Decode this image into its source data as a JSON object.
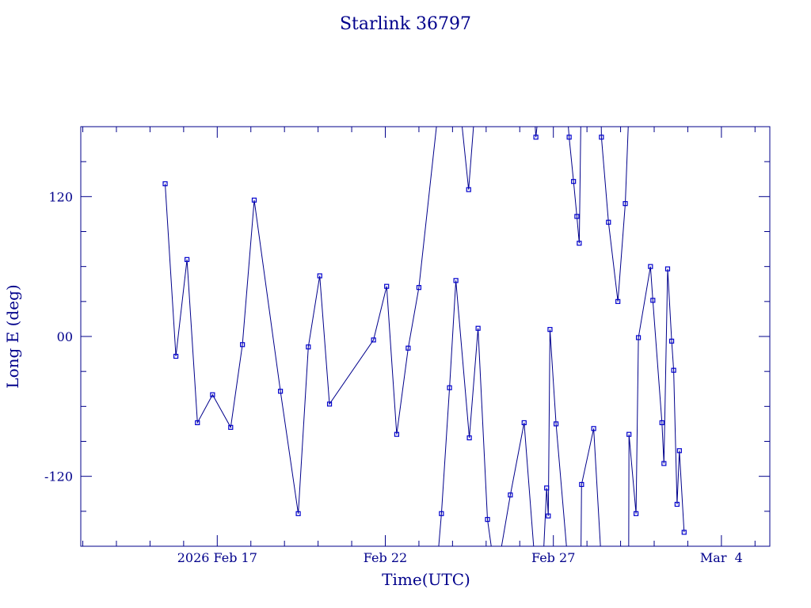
{
  "chart_data": {
    "type": "line",
    "title": "Starlink 36797",
    "xlabel": "Time(UTC)",
    "ylabel": "Long E (deg)",
    "x_tick_labels": [
      "2026 Feb 17",
      "Feb 22",
      "Feb 27",
      "Mar  4"
    ],
    "y_tick_labels": [
      "120",
      "00",
      "-120"
    ],
    "y_ticks": [
      120,
      0,
      -120
    ],
    "ylim": [
      -180,
      180
    ],
    "grid": false,
    "colors": {
      "axis": "#00008b",
      "line": "#00008b",
      "marker": "#0000cd"
    },
    "x_unit": "days from 2026 Feb 17 00:00 UTC",
    "xlim": [
      -4.06,
      16.44
    ],
    "segments": [
      [
        [
          -1.55,
          131
        ],
        [
          -1.23,
          -17
        ],
        [
          -0.9,
          66
        ],
        [
          -0.59,
          -74
        ],
        [
          -0.14,
          -50
        ],
        [
          0.4,
          -78
        ],
        [
          0.75,
          -7
        ],
        [
          1.1,
          117
        ],
        [
          1.88,
          -47
        ],
        [
          2.41,
          -152
        ],
        [
          2.71,
          -9
        ],
        [
          3.05,
          52
        ],
        [
          3.34,
          -58
        ],
        [
          4.65,
          -3
        ],
        [
          5.04,
          43
        ],
        [
          5.34,
          -84
        ],
        [
          5.68,
          -10
        ],
        [
          6.0,
          42
        ],
        [
          6.56,
          190
        ]
      ],
      [
        [
          6.56,
          -190
        ],
        [
          6.67,
          -152
        ],
        [
          6.91,
          -44
        ],
        [
          7.1,
          48
        ],
        [
          7.5,
          -87
        ],
        [
          7.76,
          7
        ],
        [
          8.04,
          -157
        ],
        [
          8.2,
          -190
        ]
      ],
      [
        [
          7.25,
          190
        ],
        [
          7.48,
          126
        ],
        [
          7.65,
          190
        ]
      ],
      [
        [
          8.4,
          -190
        ],
        [
          8.72,
          -136
        ],
        [
          9.13,
          -74
        ],
        [
          9.44,
          -190
        ]
      ],
      [
        [
          9.44,
          190
        ],
        [
          9.48,
          171
        ],
        [
          9.55,
          190
        ]
      ],
      [
        [
          9.7,
          -190
        ],
        [
          9.8,
          -130
        ],
        [
          9.85,
          -154
        ],
        [
          9.9,
          6
        ],
        [
          10.08,
          -75
        ],
        [
          10.42,
          -190
        ]
      ],
      [
        [
          10.42,
          190
        ],
        [
          10.47,
          171
        ],
        [
          10.6,
          133
        ],
        [
          10.7,
          103
        ],
        [
          10.77,
          80
        ],
        [
          10.82,
          190
        ]
      ],
      [
        [
          10.82,
          -190
        ],
        [
          10.84,
          -127
        ],
        [
          11.2,
          -79
        ],
        [
          11.42,
          -190
        ]
      ],
      [
        [
          11.42,
          190
        ],
        [
          11.43,
          171
        ],
        [
          11.64,
          98
        ],
        [
          11.92,
          30
        ],
        [
          12.14,
          114
        ],
        [
          12.24,
          190
        ]
      ],
      [
        [
          12.24,
          -190
        ],
        [
          12.25,
          -84
        ],
        [
          12.46,
          -152
        ],
        [
          12.53,
          -1
        ],
        [
          12.89,
          60
        ],
        [
          12.96,
          31
        ],
        [
          13.23,
          -74
        ],
        [
          13.29,
          -109
        ],
        [
          13.4,
          58
        ],
        [
          13.52,
          -4
        ],
        [
          13.58,
          -29
        ],
        [
          13.68,
          -144
        ],
        [
          13.75,
          -98
        ],
        [
          13.89,
          -168
        ]
      ]
    ]
  }
}
